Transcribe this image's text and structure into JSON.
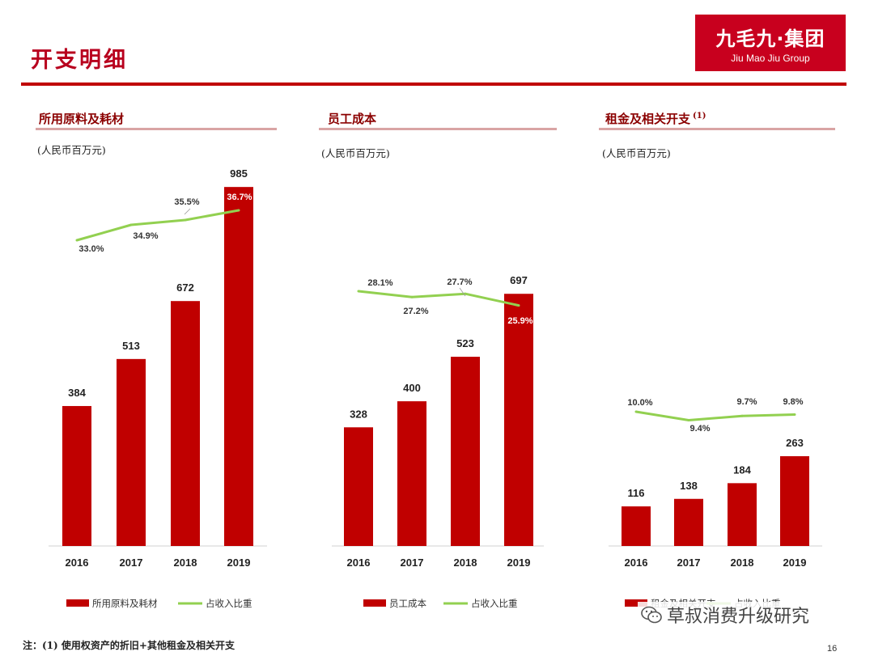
{
  "page": {
    "title": "开支明细",
    "page_number": "16"
  },
  "logo": {
    "name_zh": "九毛九·集团",
    "name_en": "Jiu Mao Jiu Group"
  },
  "colors": {
    "bar": "#c00000",
    "line": "#92d050",
    "accent": "#c00000"
  },
  "note": "注：(1) 使用权资产的折旧+其他租金及相关开支",
  "watermark": "草叔消费升级研究",
  "panels": [
    {
      "title": "所用原料及耗材",
      "superscript": "",
      "unit": "(人民币百万元)"
    },
    {
      "title": "员工成本",
      "superscript": "",
      "unit": "(人民币百万元)"
    },
    {
      "title": "租金及相关开支",
      "superscript": "(1)",
      "unit": "(人民币百万元)"
    }
  ],
  "chart_data": [
    {
      "type": "bar",
      "title": "所用原料及耗材",
      "categories": [
        "2016",
        "2017",
        "2018",
        "2019"
      ],
      "series": [
        {
          "name": "所用原料及耗材",
          "type": "bar",
          "values": [
            384,
            513,
            672,
            985
          ],
          "labels": [
            "384",
            "513",
            "672",
            "985"
          ]
        },
        {
          "name": "占收入比重",
          "type": "line",
          "values": [
            33.0,
            34.9,
            35.5,
            36.7
          ],
          "labels": [
            "33.0%",
            "34.9%",
            "35.5%",
            "36.7%"
          ]
        }
      ],
      "legend": "bottom"
    },
    {
      "type": "bar",
      "title": "员工成本",
      "categories": [
        "2016",
        "2017",
        "2018",
        "2019"
      ],
      "series": [
        {
          "name": "员工成本",
          "type": "bar",
          "values": [
            328,
            400,
            523,
            697
          ],
          "labels": [
            "328",
            "400",
            "523",
            "697"
          ]
        },
        {
          "name": "占收入比重",
          "type": "line",
          "values": [
            28.1,
            27.2,
            27.7,
            25.9
          ],
          "labels": [
            "28.1%",
            "27.2%",
            "27.7%",
            "25.9%"
          ]
        }
      ],
      "legend": "bottom"
    },
    {
      "type": "bar",
      "title": "租金及相关开支",
      "categories": [
        "2016",
        "2017",
        "2018",
        "2019"
      ],
      "series": [
        {
          "name": "租金及相关开支",
          "type": "bar",
          "values": [
            116,
            138,
            184,
            263
          ],
          "labels": [
            "116",
            "138",
            "184",
            "263"
          ]
        },
        {
          "name": "占收入比重",
          "type": "line",
          "values": [
            10.0,
            9.4,
            9.7,
            9.8
          ],
          "labels": [
            "10.0%",
            "9.4%",
            "9.7%",
            "9.8%"
          ]
        }
      ],
      "legend": "bottom"
    }
  ]
}
